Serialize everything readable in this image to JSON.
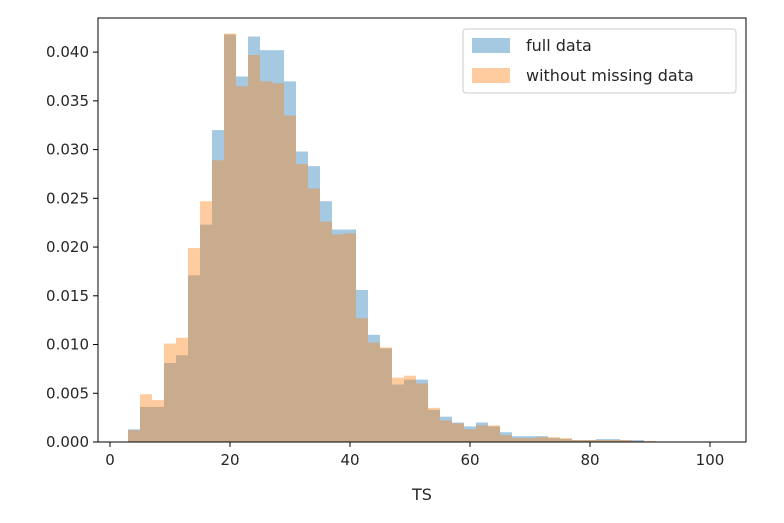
{
  "chart_data": {
    "type": "bar",
    "title": "",
    "xlabel": "TS",
    "ylabel": "",
    "xlim": [
      -2,
      106
    ],
    "ylim": [
      0,
      0.0435
    ],
    "x_ticks": [
      0,
      20,
      40,
      60,
      80,
      100
    ],
    "x_tick_labels": [
      "0",
      "20",
      "40",
      "60",
      "80",
      "100"
    ],
    "y_ticks": [
      0.0,
      0.005,
      0.01,
      0.015,
      0.02,
      0.025,
      0.03,
      0.035,
      0.04
    ],
    "y_tick_labels": [
      "0.000",
      "0.005",
      "0.010",
      "0.015",
      "0.020",
      "0.025",
      "0.030",
      "0.035",
      "0.040"
    ],
    "grid": false,
    "legend_position": "top-right",
    "bins_start": 3,
    "bin_width": 2,
    "series": [
      {
        "name": "full data",
        "color": "#1f77b4",
        "opacity": 0.4,
        "values": [
          0.0013,
          0.0036,
          0.0036,
          0.0081,
          0.0089,
          0.0171,
          0.0223,
          0.032,
          0.0418,
          0.0375,
          0.0416,
          0.0402,
          0.0402,
          0.037,
          0.0298,
          0.0283,
          0.0247,
          0.0218,
          0.0218,
          0.0156,
          0.011,
          0.0096,
          0.0059,
          0.0064,
          0.0064,
          0.0033,
          0.0026,
          0.002,
          0.0016,
          0.002,
          0.0016,
          0.001,
          0.0006,
          0.0006,
          0.0006,
          0.0004,
          0.0003,
          0.0002,
          0.0002,
          0.0003,
          0.0003,
          0.0002,
          0.0002,
          0.0,
          0.0,
          0.0,
          0.0,
          0.0,
          0.0,
          0.0,
          0.0,
          0.0,
          0.0,
          0.0,
          0.0,
          0.0,
          0.0,
          0.0,
          0.0,
          0.0
        ]
      },
      {
        "name": "without missing data",
        "color": "#ff7f0e",
        "opacity": 0.4,
        "values": [
          0.0012,
          0.0049,
          0.0043,
          0.0101,
          0.0107,
          0.0199,
          0.0247,
          0.0289,
          0.0419,
          0.0365,
          0.0397,
          0.037,
          0.0368,
          0.0335,
          0.0285,
          0.026,
          0.0226,
          0.0213,
          0.0214,
          0.0127,
          0.0102,
          0.0097,
          0.0066,
          0.0068,
          0.006,
          0.0035,
          0.0022,
          0.0019,
          0.0013,
          0.0017,
          0.0017,
          0.0007,
          0.0004,
          0.0004,
          0.0005,
          0.0005,
          0.0004,
          0.0002,
          0.0002,
          0.0002,
          0.0002,
          0.0002,
          0.0001,
          0.0001,
          0.0,
          0.0,
          0.0,
          0.0,
          0.0,
          0.0,
          0.0,
          0.0,
          0.0,
          0.0,
          0.0,
          0.0,
          0.0,
          0.0,
          0.0,
          0.0
        ]
      }
    ]
  }
}
